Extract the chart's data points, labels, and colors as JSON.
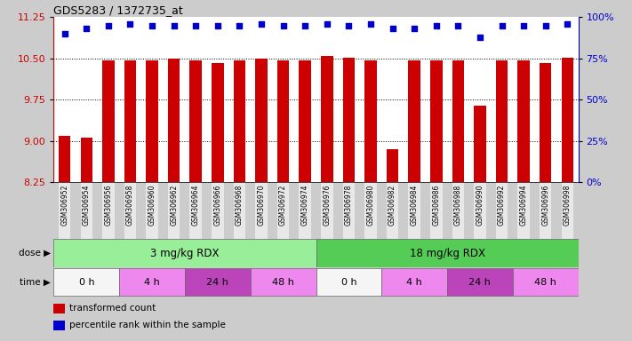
{
  "title": "GDS5283 / 1372735_at",
  "bar_values": [
    9.1,
    9.07,
    10.47,
    10.47,
    10.47,
    10.5,
    10.47,
    10.42,
    10.47,
    10.5,
    10.47,
    10.47,
    10.55,
    10.52,
    10.47,
    8.85,
    10.47,
    10.47,
    10.47,
    9.65,
    10.47,
    10.47,
    10.42,
    10.52
  ],
  "percentile_values": [
    90,
    93,
    95,
    96,
    95,
    95,
    95,
    95,
    95,
    96,
    95,
    95,
    96,
    95,
    96,
    93,
    93,
    95,
    95,
    88,
    95,
    95,
    95,
    96
  ],
  "sample_labels": [
    "GSM306952",
    "GSM306954",
    "GSM306956",
    "GSM306958",
    "GSM306960",
    "GSM306962",
    "GSM306964",
    "GSM306966",
    "GSM306968",
    "GSM306970",
    "GSM306972",
    "GSM306974",
    "GSM306976",
    "GSM306978",
    "GSM306980",
    "GSM306982",
    "GSM306984",
    "GSM306986",
    "GSM306988",
    "GSM306990",
    "GSM306992",
    "GSM306994",
    "GSM306996",
    "GSM306998"
  ],
  "bar_color": "#cc0000",
  "percentile_color": "#0000cc",
  "ylim_left": [
    8.25,
    11.25
  ],
  "ylim_right": [
    0,
    100
  ],
  "yticks_left": [
    8.25,
    9.0,
    9.75,
    10.5,
    11.25
  ],
  "yticks_right": [
    0,
    25,
    50,
    75,
    100
  ],
  "ytick_labels_right": [
    "0%",
    "25%",
    "50%",
    "75%",
    "100%"
  ],
  "gridlines": [
    9.0,
    9.75,
    10.5
  ],
  "dose_groups": [
    {
      "label": "3 mg/kg RDX",
      "start": 0,
      "end": 12,
      "color": "#99ee99"
    },
    {
      "label": "18 mg/kg RDX",
      "start": 12,
      "end": 24,
      "color": "#55cc55"
    }
  ],
  "time_groups": [
    {
      "label": "0 h",
      "start": 0,
      "end": 3,
      "color": "#f5f5f5"
    },
    {
      "label": "4 h",
      "start": 3,
      "end": 6,
      "color": "#ee88ee"
    },
    {
      "label": "24 h",
      "start": 6,
      "end": 9,
      "color": "#bb44bb"
    },
    {
      "label": "48 h",
      "start": 9,
      "end": 12,
      "color": "#ee88ee"
    },
    {
      "label": "0 h",
      "start": 12,
      "end": 15,
      "color": "#f5f5f5"
    },
    {
      "label": "4 h",
      "start": 15,
      "end": 18,
      "color": "#ee88ee"
    },
    {
      "label": "24 h",
      "start": 18,
      "end": 21,
      "color": "#bb44bb"
    },
    {
      "label": "48 h",
      "start": 21,
      "end": 24,
      "color": "#ee88ee"
    }
  ],
  "legend_items": [
    {
      "label": "transformed count",
      "color": "#cc0000"
    },
    {
      "label": "percentile rank within the sample",
      "color": "#0000cc"
    }
  ],
  "fig_bg_color": "#cccccc",
  "plot_bg_color": "#ffffff",
  "label_area_color": "#cccccc"
}
